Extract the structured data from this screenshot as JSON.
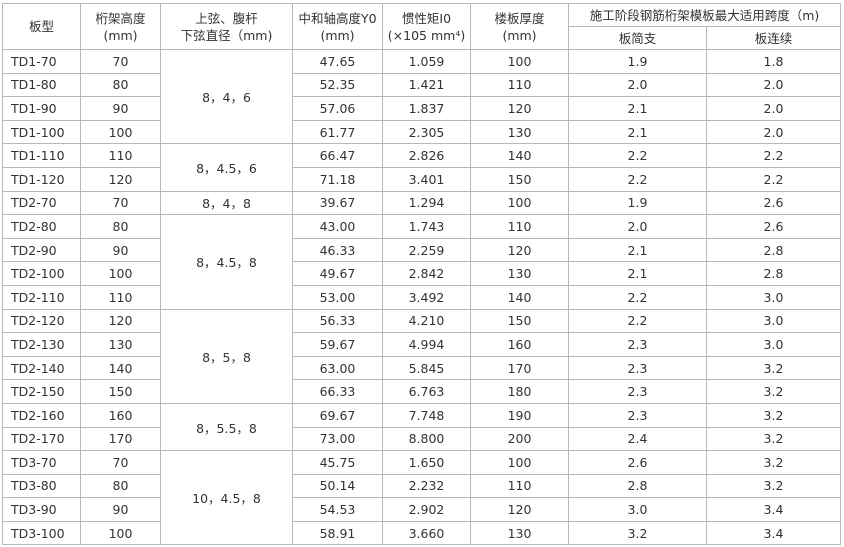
{
  "headers": {
    "type": "板型",
    "height": "桁架高度",
    "height_unit": "(mm)",
    "dia1": "上弦、腹杆",
    "dia2": "下弦直径（mm)",
    "y0": "中和轴高度Y0",
    "y0_unit": "(mm)",
    "inertia": "惯性矩I0",
    "inertia_unit": "(×105 mm⁴)",
    "slab": "楼板厚度",
    "slab_unit": "(mm)",
    "span": "施工阶段钢筋桁架模板最大适用跨度（m)",
    "simple": "板简支",
    "cont": "板连续"
  },
  "rows": [
    [
      "TD1-70",
      "70",
      "8，4，6",
      "47.65",
      "1.059",
      "100",
      "1.9",
      "1.8"
    ],
    [
      "TD1-80",
      "80",
      "",
      "52.35",
      "1.421",
      "110",
      "2.0",
      "2.0"
    ],
    [
      "TD1-90",
      "90",
      "",
      "57.06",
      "1.837",
      "120",
      "2.1",
      "2.0"
    ],
    [
      "TD1-100",
      "100",
      "",
      "61.77",
      "2.305",
      "130",
      "2.1",
      "2.0"
    ],
    [
      "TD1-110",
      "110",
      "8，4.5，6",
      "66.47",
      "2.826",
      "140",
      "2.2",
      "2.2"
    ],
    [
      "TD1-120",
      "120",
      "",
      "71.18",
      "3.401",
      "150",
      "2.2",
      "2.2"
    ],
    [
      "TD2-70",
      "70",
      "8，4，8",
      "39.67",
      "1.294",
      "100",
      "1.9",
      "2.6"
    ],
    [
      "TD2-80",
      "80",
      "8，4.5，8",
      "43.00",
      "1.743",
      "110",
      "2.0",
      "2.6"
    ],
    [
      "TD2-90",
      "90",
      "",
      "46.33",
      "2.259",
      "120",
      "2.1",
      "2.8"
    ],
    [
      "TD2-100",
      "100",
      "",
      "49.67",
      "2.842",
      "130",
      "2.1",
      "2.8"
    ],
    [
      "TD2-110",
      "110",
      "",
      "53.00",
      "3.492",
      "140",
      "2.2",
      "3.0"
    ],
    [
      "TD2-120",
      "120",
      "8，5，8",
      "56.33",
      "4.210",
      "150",
      "2.2",
      "3.0"
    ],
    [
      "TD2-130",
      "130",
      "",
      "59.67",
      "4.994",
      "160",
      "2.3",
      "3.0"
    ],
    [
      "TD2-140",
      "140",
      "",
      "63.00",
      "5.845",
      "170",
      "2.3",
      "3.2"
    ],
    [
      "TD2-150",
      "150",
      "",
      "66.33",
      "6.763",
      "180",
      "2.3",
      "3.2"
    ],
    [
      "TD2-160",
      "160",
      "8，5.5，8",
      "69.67",
      "7.748",
      "190",
      "2.3",
      "3.2"
    ],
    [
      "TD2-170",
      "170",
      "",
      "73.00",
      "8.800",
      "200",
      "2.4",
      "3.2"
    ],
    [
      "TD3-70",
      "70",
      "10，4.5，8",
      "45.75",
      "1.650",
      "100",
      "2.6",
      "3.2"
    ],
    [
      "TD3-80",
      "80",
      "",
      "50.14",
      "2.232",
      "110",
      "2.8",
      "3.2"
    ],
    [
      "TD3-90",
      "90",
      "",
      "54.53",
      "2.902",
      "120",
      "3.0",
      "3.4"
    ],
    [
      "TD3-100",
      "100",
      "",
      "58.91",
      "3.660",
      "130",
      "3.2",
      "3.4"
    ]
  ],
  "dia_spans": [
    4,
    2,
    1,
    4,
    4,
    2,
    4
  ]
}
